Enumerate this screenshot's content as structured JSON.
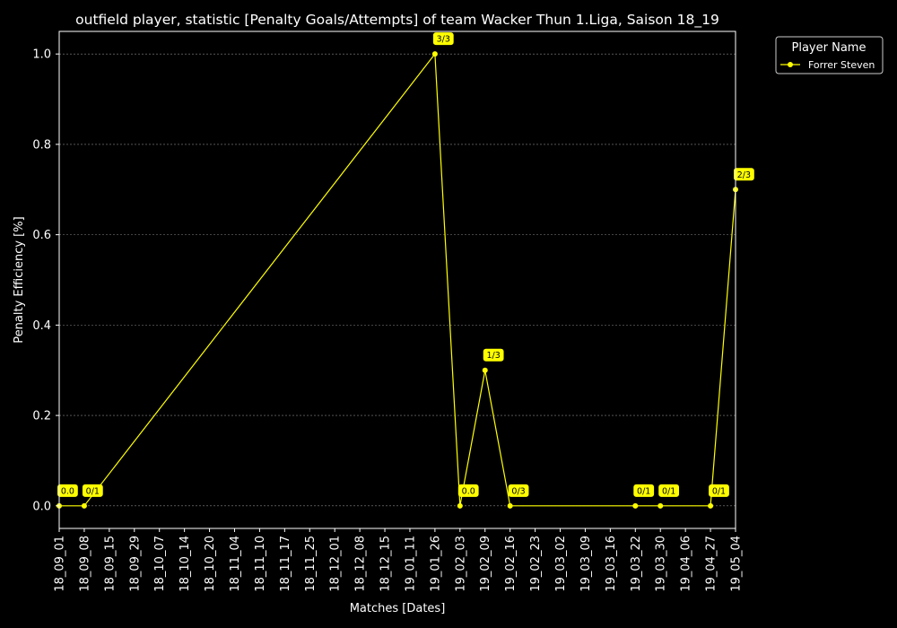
{
  "chart_data": {
    "type": "line",
    "title": "outfield player, statistic [Penalty Goals/Attempts] of team Wacker Thun 1.Liga, Saison 18_19",
    "xlabel": "Matches [Dates]",
    "ylabel": "Penalty Efficiency [%]",
    "ylim": [
      -0.05,
      1.05
    ],
    "y_ticks": [
      "0.0",
      "0.2",
      "0.4",
      "0.6",
      "0.8",
      "1.0"
    ],
    "y_tick_values": [
      0.0,
      0.2,
      0.4,
      0.6,
      0.8,
      1.0
    ],
    "grid": "horizontal dotted",
    "legend_position": "outside-top-right",
    "legend_title": "Player Name",
    "categories": [
      "18_09_01",
      "18_09_08",
      "18_09_15",
      "18_09_29",
      "18_10_07",
      "18_10_14",
      "18_10_20",
      "18_11_04",
      "18_11_10",
      "18_11_17",
      "18_11_25",
      "18_12_01",
      "18_12_08",
      "18_12_15",
      "19_01_11",
      "19_01_26",
      "19_02_03",
      "19_02_09",
      "19_02_16",
      "19_02_23",
      "19_03_02",
      "19_03_09",
      "19_03_16",
      "19_03_22",
      "19_03_30",
      "19_04_06",
      "19_04_27",
      "19_05_04"
    ],
    "series": [
      {
        "name": "Forrer Steven",
        "color": "#ffff00",
        "points": [
          {
            "x": "18_09_01",
            "y": 0.0,
            "label": "0.0"
          },
          {
            "x": "18_09_08",
            "y": 0.0,
            "label": "0/1"
          },
          {
            "x": "19_01_26",
            "y": 1.0,
            "label": "3/3"
          },
          {
            "x": "19_02_03",
            "y": 0.0,
            "label": "0.0"
          },
          {
            "x": "19_02_09",
            "y": 0.3,
            "label": "1/3"
          },
          {
            "x": "19_02_16",
            "y": 0.0,
            "label": "0/3"
          },
          {
            "x": "19_03_22",
            "y": 0.0,
            "label": "0/1"
          },
          {
            "x": "19_03_30",
            "y": 0.0,
            "label": "0/1"
          },
          {
            "x": "19_04_27",
            "y": 0.0,
            "label": "0/1"
          },
          {
            "x": "19_05_04",
            "y": 0.7,
            "label": "2/3"
          }
        ]
      }
    ]
  }
}
